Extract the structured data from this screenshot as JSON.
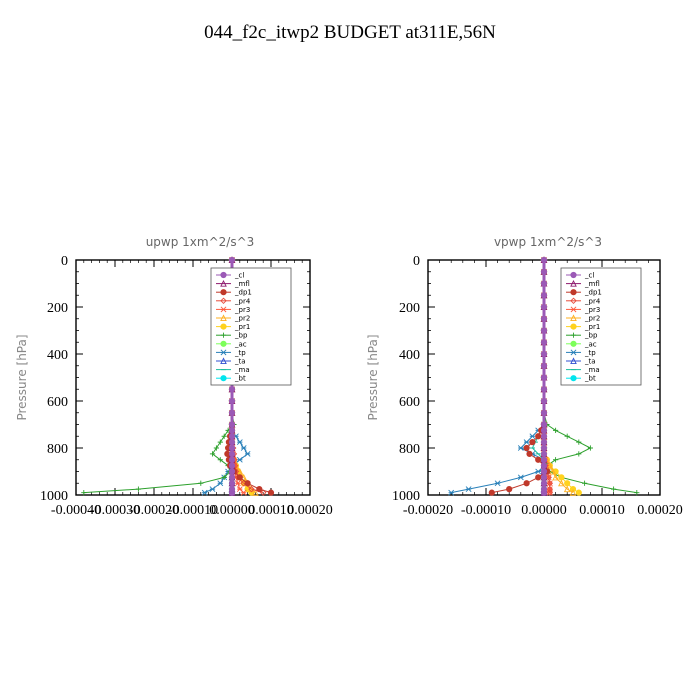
{
  "figure_title": "044_f2c_itwp2  BUDGET at311E,56N",
  "legend_entries": [
    {
      "name": "_cl",
      "color": "#9b59b6",
      "marker": "circle"
    },
    {
      "name": "_mfl",
      "color": "#8e1a6e",
      "marker": "tri"
    },
    {
      "name": "_dp1",
      "color": "#c0392b",
      "marker": "circle"
    },
    {
      "name": "_pr4",
      "color": "#e74c3c",
      "marker": "diamond"
    },
    {
      "name": "_pr3",
      "color": "#ff5a3c",
      "marker": "star"
    },
    {
      "name": "_pr2",
      "color": "#ffb020",
      "marker": "tri"
    },
    {
      "name": "_pr1",
      "color": "#ffd21e",
      "marker": "circle"
    },
    {
      "name": "_bp",
      "color": "#2ca02c",
      "marker": "cross"
    },
    {
      "name": "_ac",
      "color": "#7dff5a",
      "marker": "circle"
    },
    {
      "name": "_tp",
      "color": "#2980b9",
      "marker": "star"
    },
    {
      "name": "_ta",
      "color": "#3050d0",
      "marker": "tri"
    },
    {
      "name": "_ma",
      "color": "#1abc9c",
      "marker": "dash"
    },
    {
      "name": "_bt",
      "color": "#00e5ee",
      "marker": "circle"
    }
  ],
  "chart_data": [
    {
      "type": "line",
      "title": "upwp   1xm^2/s^3",
      "ylabel": "Pressure [hPa]",
      "xlim": [
        -0.0004,
        0.0002
      ],
      "ylim": [
        1000,
        0
      ],
      "xticks": [
        -0.0004,
        -0.0003,
        -0.0002,
        -0.0001,
        0,
        0.0001,
        0.0002
      ],
      "xtick_labels": [
        "-0.00040",
        "-0.00030",
        "-0.00020",
        "-0.00010",
        "0.00000",
        "0.00010",
        "0.00020"
      ],
      "yticks": [
        0,
        200,
        400,
        600,
        800,
        1000
      ],
      "ytick_labels": [
        "0",
        "200",
        "400",
        "600",
        "800",
        "1000"
      ],
      "legend": "top-right",
      "y": [
        0,
        50,
        100,
        150,
        200,
        250,
        300,
        350,
        400,
        450,
        500,
        550,
        600,
        650,
        700,
        725,
        750,
        775,
        800,
        825,
        850,
        875,
        900,
        925,
        950,
        975,
        990
      ],
      "series": [
        {
          "name": "_cl",
          "values": [
            0,
            0,
            0,
            0,
            0,
            0,
            0,
            0,
            0,
            0,
            0,
            0,
            0,
            0,
            0,
            0,
            0,
            0,
            0,
            0,
            0,
            0,
            0,
            0,
            0,
            0,
            0
          ]
        },
        {
          "name": "_mfl",
          "values": [
            0,
            0,
            0,
            0,
            0,
            0,
            0,
            0,
            0,
            0,
            0,
            0,
            0,
            0,
            0,
            0,
            0,
            0,
            0,
            0,
            0,
            0,
            0,
            0,
            0,
            0,
            0
          ]
        },
        {
          "name": "_dp1",
          "values": [
            0,
            0,
            0,
            0,
            0,
            0,
            0,
            0,
            0,
            0,
            0,
            0,
            0,
            0,
            0,
            0,
            -5e-06,
            -8e-06,
            -1e-05,
            -1.2e-05,
            -8e-06,
            -5e-06,
            5e-06,
            2e-05,
            4e-05,
            7e-05,
            0.0001
          ]
        },
        {
          "name": "_pr4",
          "values": [
            0,
            0,
            0,
            0,
            0,
            0,
            0,
            0,
            0,
            0,
            0,
            0,
            0,
            0,
            0,
            0,
            0,
            0,
            3e-06,
            5e-06,
            6e-06,
            8e-06,
            1e-05,
            1.5e-05,
            3e-05,
            5e-05,
            8e-05
          ]
        },
        {
          "name": "_pr3",
          "values": [
            0,
            0,
            0,
            0,
            0,
            0,
            0,
            0,
            0,
            0,
            0,
            0,
            0,
            0,
            0,
            0,
            0,
            0,
            0,
            2e-06,
            4e-06,
            6e-06,
            8e-06,
            1e-05,
            1.5e-05,
            2e-05,
            3e-05
          ]
        },
        {
          "name": "_pr2",
          "values": [
            0,
            0,
            0,
            0,
            0,
            0,
            0,
            0,
            0,
            0,
            0,
            0,
            0,
            0,
            0,
            0,
            0,
            0,
            0,
            0,
            5e-06,
            1e-05,
            2e-05,
            3e-05,
            4e-05,
            5e-05,
            6e-05
          ]
        },
        {
          "name": "_pr1",
          "values": [
            0,
            0,
            0,
            0,
            0,
            0,
            0,
            0,
            0,
            0,
            0,
            0,
            0,
            0,
            0,
            0,
            0,
            0,
            0,
            0,
            5e-06,
            1e-05,
            1.5e-05,
            2e-05,
            3e-05,
            4e-05,
            5e-05
          ]
        },
        {
          "name": "_bp",
          "values": [
            0,
            0,
            0,
            0,
            0,
            0,
            0,
            0,
            0,
            0,
            0,
            0,
            0,
            0,
            5e-06,
            -1e-05,
            -2e-05,
            -3e-05,
            -4e-05,
            -5e-05,
            -3e-05,
            -1e-05,
            -5e-06,
            -2e-05,
            -8e-05,
            -0.00024,
            -0.00038
          ]
        },
        {
          "name": "_ac",
          "values": [
            0,
            0,
            0,
            0,
            0,
            0,
            0,
            0,
            0,
            0,
            0,
            0,
            0,
            0,
            0,
            0,
            0,
            0,
            0,
            0,
            0,
            0,
            0,
            0,
            0,
            0,
            0
          ]
        },
        {
          "name": "_tp",
          "values": [
            0,
            0,
            0,
            0,
            0,
            0,
            0,
            0,
            0,
            0,
            0,
            0,
            0,
            0,
            0,
            0,
            1e-05,
            2e-05,
            3e-05,
            4e-05,
            2e-05,
            0,
            -1e-05,
            -2e-05,
            -3e-05,
            -5e-05,
            -7e-05
          ]
        },
        {
          "name": "_ta",
          "values": [
            0,
            0,
            0,
            0,
            0,
            0,
            0,
            0,
            0,
            0,
            0,
            0,
            0,
            0,
            0,
            0,
            0,
            0,
            0,
            0,
            0,
            0,
            0,
            0,
            0,
            0,
            0
          ]
        },
        {
          "name": "_ma",
          "values": [
            0,
            0,
            0,
            0,
            0,
            0,
            0,
            0,
            0,
            0,
            0,
            0,
            0,
            0,
            0,
            0,
            0,
            0,
            0,
            0,
            0,
            0,
            0,
            0,
            0,
            0,
            0
          ]
        },
        {
          "name": "_bt",
          "values": [
            0,
            0,
            0,
            0,
            0,
            0,
            0,
            0,
            0,
            0,
            0,
            0,
            0,
            0,
            0,
            0,
            0,
            0,
            0,
            0,
            0,
            0,
            0,
            0,
            0,
            0,
            0
          ]
        }
      ]
    },
    {
      "type": "line",
      "title": "vpwp   1xm^2/s^3",
      "ylabel": "Pressure [hPa]",
      "xlim": [
        -0.0002,
        0.0002
      ],
      "ylim": [
        1000,
        0
      ],
      "xticks": [
        -0.0002,
        -0.0001,
        0,
        0.0001,
        0.0002
      ],
      "xtick_labels": [
        "-0.00020",
        "-0.00010",
        "0.00000",
        "0.00010",
        "0.00020"
      ],
      "yticks": [
        0,
        200,
        400,
        600,
        800,
        1000
      ],
      "ytick_labels": [
        "0",
        "200",
        "400",
        "600",
        "800",
        "1000"
      ],
      "legend": "top-right",
      "y": [
        0,
        50,
        100,
        150,
        200,
        250,
        300,
        350,
        400,
        450,
        500,
        550,
        600,
        650,
        700,
        725,
        750,
        775,
        800,
        825,
        850,
        875,
        900,
        925,
        950,
        975,
        990
      ],
      "series": [
        {
          "name": "_cl",
          "values": [
            0,
            0,
            0,
            0,
            0,
            0,
            0,
            0,
            0,
            0,
            0,
            0,
            0,
            0,
            0,
            0,
            0,
            0,
            0,
            0,
            0,
            0,
            0,
            0,
            0,
            0,
            0
          ]
        },
        {
          "name": "_mfl",
          "values": [
            0,
            0,
            0,
            0,
            0,
            0,
            0,
            0,
            0,
            0,
            0,
            0,
            0,
            0,
            0,
            0,
            0,
            0,
            0,
            0,
            0,
            0,
            0,
            0,
            0,
            0,
            0
          ]
        },
        {
          "name": "_dp1",
          "values": [
            0,
            0,
            0,
            0,
            0,
            0,
            0,
            0,
            0,
            0,
            0,
            0,
            0,
            0,
            0,
            -5e-06,
            -1e-05,
            -2e-05,
            -3e-05,
            -2.5e-05,
            -1e-05,
            0,
            5e-06,
            -1e-05,
            -3e-05,
            -6e-05,
            -9e-05
          ]
        },
        {
          "name": "_pr4",
          "values": [
            0,
            0,
            0,
            0,
            0,
            0,
            0,
            0,
            0,
            0,
            0,
            0,
            0,
            0,
            0,
            0,
            0,
            0,
            0,
            0,
            0,
            2e-06,
            5e-06,
            8e-06,
            1e-05,
            1e-05,
            1e-05
          ]
        },
        {
          "name": "_pr3",
          "values": [
            0,
            0,
            0,
            0,
            0,
            0,
            0,
            0,
            0,
            0,
            0,
            0,
            0,
            0,
            0,
            0,
            0,
            0,
            0,
            0,
            2e-06,
            4e-06,
            6e-06,
            8e-06,
            1e-05,
            1e-05,
            1e-05
          ]
        },
        {
          "name": "_pr2",
          "values": [
            0,
            0,
            0,
            0,
            0,
            0,
            0,
            0,
            0,
            0,
            0,
            0,
            0,
            0,
            0,
            0,
            0,
            0,
            0,
            0,
            5e-06,
            1e-05,
            1.5e-05,
            2e-05,
            3e-05,
            4e-05,
            5e-05
          ]
        },
        {
          "name": "_pr1",
          "values": [
            0,
            0,
            0,
            0,
            0,
            0,
            0,
            0,
            0,
            0,
            0,
            0,
            0,
            0,
            0,
            0,
            0,
            0,
            0,
            0,
            5e-06,
            1e-05,
            2e-05,
            3e-05,
            4e-05,
            5e-05,
            6e-05
          ]
        },
        {
          "name": "_bp",
          "values": [
            0,
            0,
            0,
            0,
            0,
            0,
            0,
            0,
            0,
            0,
            0,
            0,
            0,
            0,
            5e-06,
            2e-05,
            4e-05,
            6e-05,
            8e-05,
            6e-05,
            2e-05,
            5e-06,
            1e-05,
            3e-05,
            7e-05,
            0.00012,
            0.00016
          ]
        },
        {
          "name": "_ac",
          "values": [
            0,
            0,
            0,
            0,
            0,
            0,
            0,
            0,
            0,
            0,
            0,
            0,
            0,
            0,
            0,
            0,
            0,
            0,
            0,
            0,
            0,
            0,
            0,
            0,
            0,
            0,
            0
          ]
        },
        {
          "name": "_tp",
          "values": [
            0,
            0,
            0,
            0,
            0,
            0,
            0,
            0,
            0,
            0,
            0,
            0,
            0,
            0,
            0,
            -1e-05,
            -2e-05,
            -3e-05,
            -4e-05,
            -2e-05,
            0,
            1e-05,
            -1e-05,
            -4e-05,
            -8e-05,
            -0.00013,
            -0.00016
          ]
        },
        {
          "name": "_ta",
          "values": [
            0,
            0,
            0,
            0,
            0,
            0,
            0,
            0,
            0,
            0,
            0,
            0,
            0,
            0,
            0,
            0,
            0,
            0,
            0,
            0,
            0,
            0,
            0,
            0,
            0,
            0,
            0
          ]
        },
        {
          "name": "_ma",
          "values": [
            0,
            0,
            0,
            0,
            0,
            0,
            0,
            0,
            0,
            0,
            0,
            0,
            0,
            0,
            0,
            -5e-06,
            -1e-05,
            -1.5e-05,
            -2e-05,
            -1e-05,
            0,
            0,
            0,
            0,
            0,
            0,
            0
          ]
        },
        {
          "name": "_bt",
          "values": [
            0,
            0,
            0,
            0,
            0,
            0,
            0,
            0,
            0,
            0,
            0,
            0,
            0,
            0,
            0,
            0,
            0,
            0,
            0,
            0,
            0,
            0,
            0,
            0,
            0,
            0,
            0
          ]
        }
      ]
    }
  ]
}
